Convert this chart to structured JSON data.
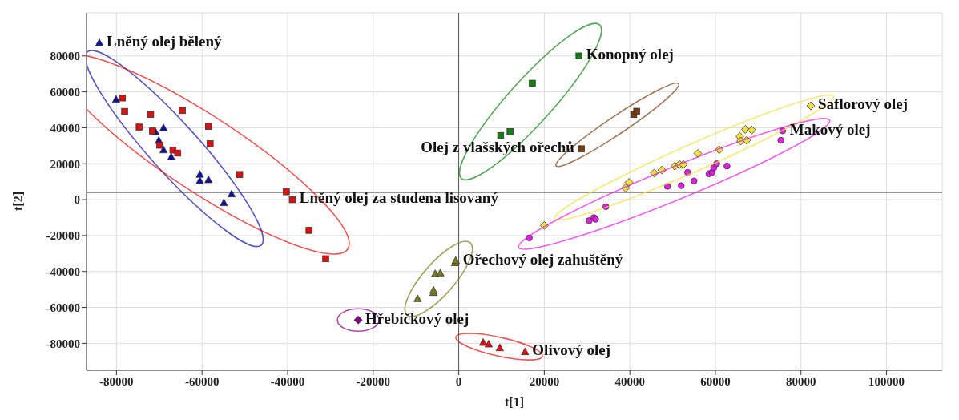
{
  "chart_data": {
    "type": "scatter",
    "xlabel": "t[1]",
    "ylabel": "t[2]",
    "xlim": [
      -87000,
      113000
    ],
    "ylim": [
      -95000,
      104000
    ],
    "xticks": [
      -80000,
      -60000,
      -40000,
      -20000,
      0,
      20000,
      40000,
      60000,
      80000,
      100000
    ],
    "yticks": [
      -80000,
      -60000,
      -40000,
      -20000,
      0,
      20000,
      40000,
      60000,
      80000
    ],
    "grid": true,
    "ref_lines": [
      {
        "axis": "x",
        "value": 0,
        "color": "#555555"
      },
      {
        "axis": "y",
        "value": 4000,
        "color": "#555555"
      }
    ],
    "series": [
      {
        "name": "Lněný olej bělený",
        "color": "#1010a0",
        "marker": "triangle",
        "x": [
          -84000,
          -80100,
          -70900,
          -69000,
          -70100,
          -69000,
          -67200,
          -60500,
          -60500,
          -58500,
          -54900,
          -53100
        ],
        "values": [
          87300,
          55700,
          37700,
          39900,
          32900,
          27600,
          23700,
          14000,
          10500,
          11000,
          -1800,
          3100
        ]
      },
      {
        "name": "Lněný olej za studena lisovaný",
        "color": "#e01010",
        "marker": "square",
        "x": [
          -78600,
          -78100,
          -74700,
          -72000,
          -71600,
          -69900,
          -66800,
          -65700,
          -64600,
          -58500,
          -58100,
          -51200,
          -40300,
          -38900,
          -35000,
          -31100
        ],
        "values": [
          56600,
          49100,
          40400,
          47400,
          38200,
          30300,
          27600,
          25900,
          49600,
          40800,
          31100,
          14000,
          4400,
          0,
          -17100,
          -32900
        ]
      },
      {
        "name": "Hřebíčkový olej",
        "color": "#800080",
        "marker": "diamond",
        "x": [
          -23500
        ],
        "values": [
          -67000
        ]
      },
      {
        "name": "Ořechový olej zahuštěný",
        "color": "#7a7a20",
        "marker": "triangle",
        "x": [
          -9600,
          -5900,
          -5900,
          -5500,
          -4300,
          -900,
          -700
        ],
        "values": [
          -55200,
          -51800,
          -50500,
          -41300,
          -40900,
          -35200,
          -34000
        ]
      },
      {
        "name": "Olivový olej",
        "color": "#e01010",
        "marker": "triangle",
        "x": [
          5700,
          7000,
          9600,
          15500
        ],
        "values": [
          -79600,
          -80500,
          -82600,
          -84800
        ]
      },
      {
        "name": "Konopný olej",
        "color": "#108010",
        "marker": "square",
        "x": [
          28100,
          17200,
          12000,
          9800
        ],
        "values": [
          80000,
          64800,
          37800,
          35700
        ]
      },
      {
        "name": "Olej z vlašských ořechů",
        "color": "#7a3a10",
        "marker": "square",
        "x": [
          40900,
          41600,
          28700
        ],
        "values": [
          47400,
          49200,
          28300
        ]
      },
      {
        "name": "Saflorový olej",
        "color": "#f0e040",
        "marker": "diamond",
        "x": [
          20000,
          39000,
          39800,
          45700,
          47500,
          50500,
          51600,
          52500,
          55900,
          60900,
          65700,
          65900,
          67300,
          67000,
          68500,
          82300
        ],
        "values": [
          -14400,
          6500,
          9600,
          14800,
          16500,
          18700,
          19600,
          19600,
          25700,
          27800,
          35200,
          32600,
          33000,
          39100,
          38700,
          52200
        ]
      },
      {
        "name": "Makový olej",
        "color": "#e020e0",
        "marker": "circle",
        "x": [
          16500,
          30500,
          31600,
          32000,
          34400,
          48800,
          52000,
          53500,
          55000,
          58500,
          59200,
          59600,
          60300,
          62700,
          75300,
          75700
        ],
        "values": [
          -21300,
          -11700,
          -10000,
          -10900,
          -3900,
          7400,
          7800,
          15200,
          10400,
          14400,
          15200,
          17800,
          20000,
          18700,
          33000,
          38300
        ]
      }
    ]
  }
}
